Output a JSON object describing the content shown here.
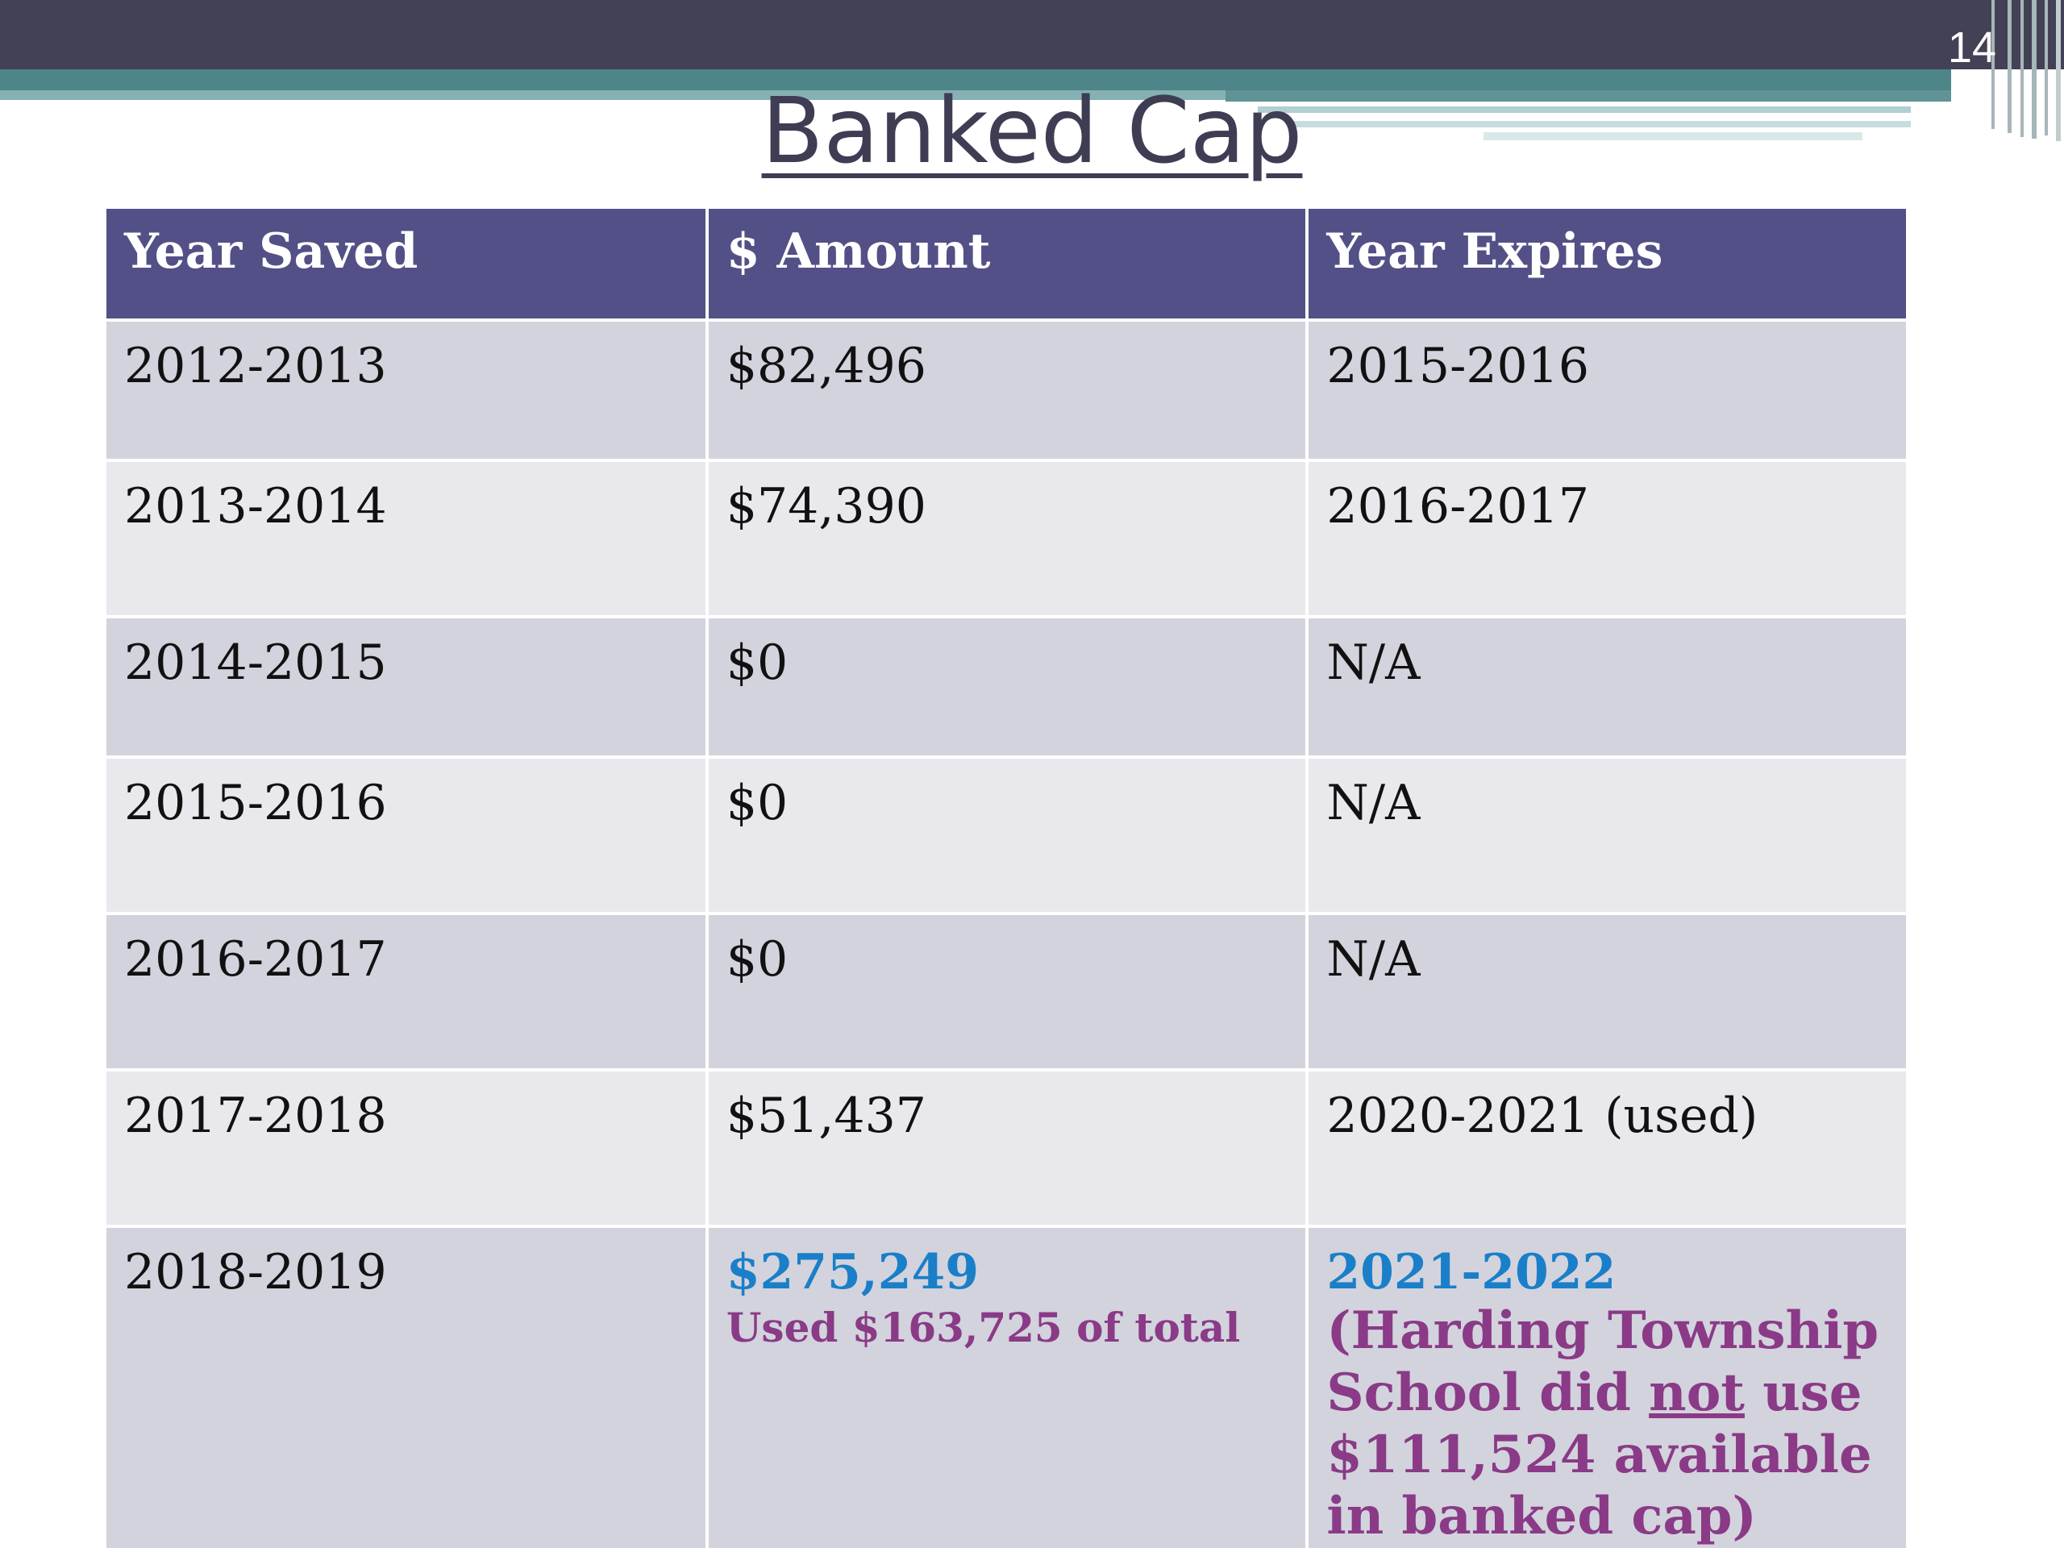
{
  "slide": {
    "number": "14",
    "title": "Banked Cap"
  },
  "table": {
    "headers": [
      "Year Saved",
      "$ Amount",
      "Year Expires"
    ],
    "rows": [
      {
        "year_saved": "2012-2013",
        "amount": "$82,496",
        "year_expires": "2015-2016"
      },
      {
        "year_saved": "2013-2014",
        "amount": "$74,390",
        "year_expires": "2016-2017"
      },
      {
        "year_saved": "2014-2015",
        "amount": "$0",
        "year_expires": "N/A"
      },
      {
        "year_saved": "2015-2016",
        "amount": "$0",
        "year_expires": "N/A"
      },
      {
        "year_saved": "2016-2017",
        "amount": "$0",
        "year_expires": "N/A"
      },
      {
        "year_saved": "2017-2018",
        "amount": "$51,437",
        "year_expires": "2020-2021 (used)"
      },
      {
        "year_saved": "2018-2019",
        "amount": "$275,249",
        "amount_note": "Used $163,725 of total",
        "year_expires": "2021-2022",
        "expires_note_before": "(Harding Township School did ",
        "expires_note_emphasis": "not",
        "expires_note_after": " use $111,524 available in banked cap)"
      }
    ]
  },
  "colors": {
    "header_bg": "#525086",
    "row_dark": "#d2d3dd",
    "row_light": "#e9e9ed",
    "highlight_blue": "#1a7fc8",
    "highlight_purple": "#8a3a86",
    "banner_dark": "#434155",
    "banner_teal": "#4e8589"
  }
}
